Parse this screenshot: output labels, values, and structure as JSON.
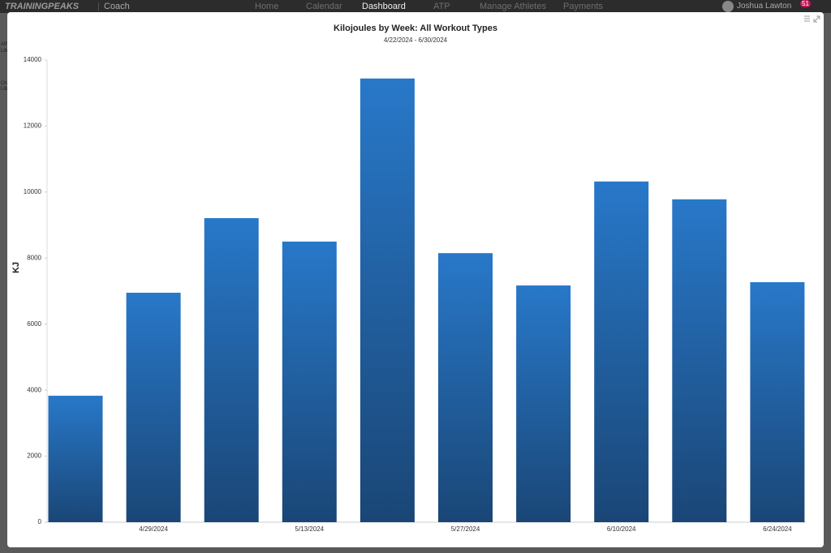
{
  "app": {
    "brand": "TRAININGPEAKS",
    "product": "Coach",
    "nav": [
      "Home",
      "Calendar",
      "Dashboard",
      "ATP",
      "Manage Athletes",
      "Payments"
    ],
    "user": "Joshua Lawton",
    "notifications": "51",
    "sidebar": [
      "Ath",
      "Lib",
      "Ch",
      "Lib"
    ]
  },
  "chart_data": {
    "type": "bar",
    "title": "Kilojoules by Week: All Workout Types",
    "subtitle": "4/22/2024 - 6/30/2024",
    "y_label": "KJ",
    "categories": [
      null,
      "4/29/2024",
      null,
      "5/13/2024",
      null,
      "5/27/2024",
      null,
      "6/10/2024",
      null,
      "6/24/2024"
    ],
    "values": [
      3830,
      6950,
      9210,
      8500,
      13440,
      8150,
      7170,
      10320,
      9780,
      7270
    ],
    "color": [
      "#2878c9",
      "#1a4676"
    ],
    "ylim": [
      0,
      14000
    ],
    "yticks": [
      0,
      2000,
      4000,
      6000,
      8000,
      10000,
      12000,
      14000
    ]
  }
}
